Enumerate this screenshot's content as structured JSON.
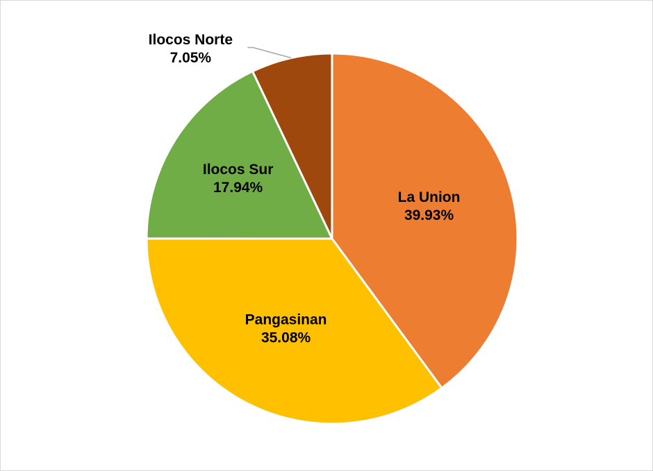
{
  "chart_data": {
    "type": "pie",
    "categories": [
      "La Union",
      "Pangasinan",
      "Ilocos Sur",
      "Ilocos Norte"
    ],
    "values": [
      39.93,
      35.08,
      17.94,
      7.05
    ],
    "value_labels": [
      "39.93%",
      "35.08%",
      "17.94%",
      "7.05%"
    ],
    "colors": [
      "#ed7d31",
      "#ffc000",
      "#70ad47",
      "#9e480e"
    ]
  }
}
